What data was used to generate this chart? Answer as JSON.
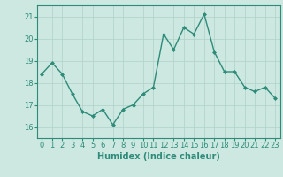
{
  "x": [
    0,
    1,
    2,
    3,
    4,
    5,
    6,
    7,
    8,
    9,
    10,
    11,
    12,
    13,
    14,
    15,
    16,
    17,
    18,
    19,
    20,
    21,
    22,
    23
  ],
  "y": [
    18.4,
    18.9,
    18.4,
    17.5,
    16.7,
    16.5,
    16.8,
    16.1,
    16.8,
    17.0,
    17.5,
    17.8,
    20.2,
    19.5,
    20.5,
    20.2,
    21.1,
    19.4,
    18.5,
    18.5,
    17.8,
    17.6,
    17.8,
    17.3
  ],
  "line_color": "#2e8b7a",
  "marker": "D",
  "marker_size": 2,
  "background_color": "#cce8e0",
  "grid_color": "#b0d0c8",
  "xlabel": "Humidex (Indice chaleur)",
  "xlim": [
    -0.5,
    23.5
  ],
  "ylim": [
    15.5,
    21.5
  ],
  "yticks": [
    16,
    17,
    18,
    19,
    20,
    21
  ],
  "xticks": [
    0,
    1,
    2,
    3,
    4,
    5,
    6,
    7,
    8,
    9,
    10,
    11,
    12,
    13,
    14,
    15,
    16,
    17,
    18,
    19,
    20,
    21,
    22,
    23
  ],
  "xlabel_fontsize": 7,
  "tick_fontsize": 6,
  "line_width": 1.0
}
